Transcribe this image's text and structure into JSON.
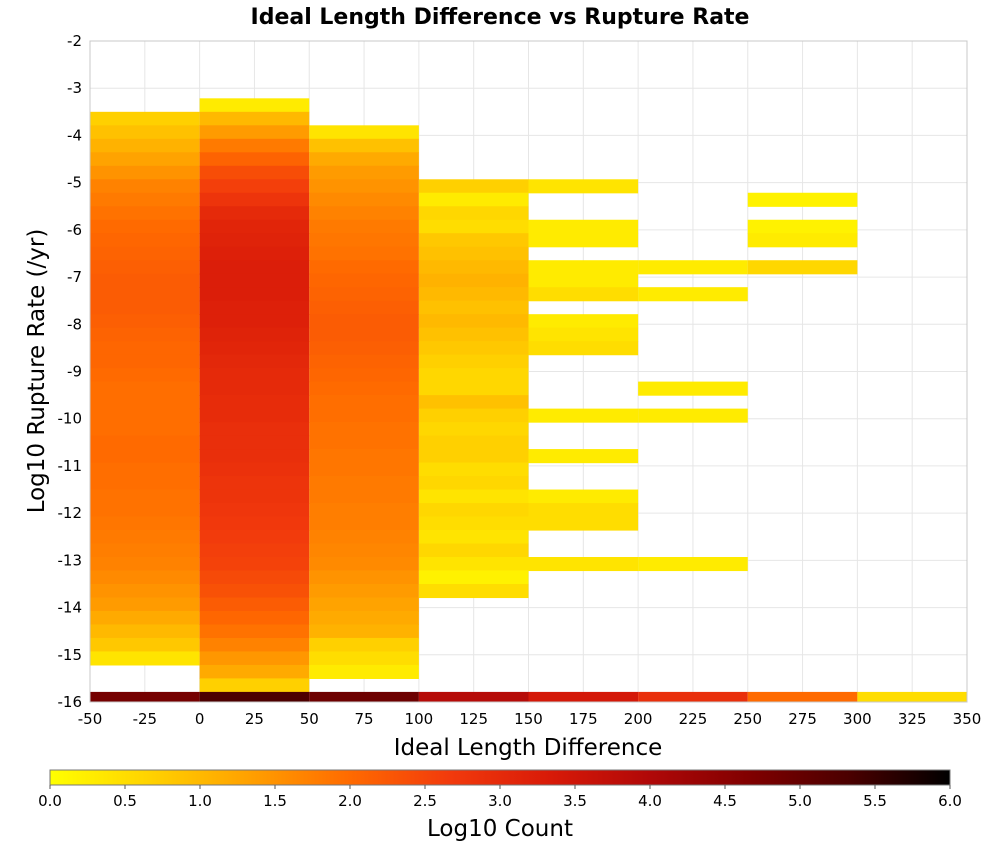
{
  "chart_data": {
    "type": "heatmap",
    "title": "Ideal Length Difference vs Rupture Rate",
    "xlabel": "Ideal Length Difference",
    "ylabel": "Log10 Rupture Rate (/yr)",
    "xlim": [
      -50,
      350
    ],
    "ylim": [
      -16,
      -2
    ],
    "x_ticks": [
      -50,
      -25,
      0,
      25,
      50,
      75,
      100,
      125,
      150,
      175,
      200,
      225,
      250,
      275,
      300,
      325,
      350
    ],
    "x_tick_labels": [
      "-50",
      "-25",
      "0",
      "25",
      "50",
      "75",
      "100",
      "125",
      "150",
      "175",
      "200",
      "225",
      "250",
      "275",
      "300",
      "325",
      "350"
    ],
    "y_ticks": [
      -2,
      -3,
      -4,
      -5,
      -6,
      -7,
      -8,
      -9,
      -10,
      -11,
      -12,
      -13,
      -14,
      -15,
      -16
    ],
    "y_tick_labels": [
      "-2",
      "-3",
      "-4",
      "-5",
      "-6",
      "-7",
      "-8",
      "-9",
      "-10",
      "-11",
      "-12",
      "-13",
      "-14",
      "-15",
      "-16"
    ],
    "grid": true,
    "x_bin_width": 50,
    "y_bin_height": 0.286,
    "colorbar": {
      "label": "Log10 Count",
      "range": [
        0.0,
        6.0
      ],
      "ticks": [
        "0.0",
        "0.5",
        "1.0",
        "1.5",
        "2.0",
        "2.5",
        "3.0",
        "3.5",
        "4.0",
        "4.5",
        "5.0",
        "5.5",
        "6.0"
      ],
      "colormap": [
        "#ffff00",
        "#ffd200",
        "#ffa000",
        "#ff6a00",
        "#f23a0c",
        "#d81a08",
        "#b00808",
        "#800000",
        "#4a0000",
        "#000000"
      ]
    },
    "columns": [
      {
        "x_start": -50,
        "cells": [
          [
            -3.5,
            -3.786,
            0.7
          ],
          [
            -3.786,
            -4.071,
            0.9
          ],
          [
            -4.071,
            -4.357,
            1.1
          ],
          [
            -4.357,
            -4.643,
            1.3
          ],
          [
            -4.643,
            -4.929,
            1.5
          ],
          [
            -4.929,
            -5.214,
            1.7
          ],
          [
            -5.214,
            -5.5,
            1.8
          ],
          [
            -5.5,
            -5.786,
            1.9
          ],
          [
            -5.786,
            -6.071,
            2.0
          ],
          [
            -6.071,
            -6.357,
            2.05
          ],
          [
            -6.357,
            -6.643,
            2.1
          ],
          [
            -6.643,
            -6.929,
            2.15
          ],
          [
            -6.929,
            -7.214,
            2.2
          ],
          [
            -7.214,
            -7.5,
            2.2
          ],
          [
            -7.5,
            -7.786,
            2.2
          ],
          [
            -7.786,
            -8.071,
            2.15
          ],
          [
            -8.071,
            -8.357,
            2.1
          ],
          [
            -8.357,
            -8.643,
            2.05
          ],
          [
            -8.643,
            -8.929,
            2.05
          ],
          [
            -8.929,
            -9.214,
            2.0
          ],
          [
            -9.214,
            -9.5,
            1.95
          ],
          [
            -9.5,
            -9.786,
            1.95
          ],
          [
            -9.786,
            -10.071,
            1.95
          ],
          [
            -10.071,
            -10.357,
            1.95
          ],
          [
            -10.357,
            -10.643,
            2.0
          ],
          [
            -10.643,
            -10.929,
            2.0
          ],
          [
            -10.929,
            -11.214,
            1.95
          ],
          [
            -11.214,
            -11.5,
            1.95
          ],
          [
            -11.5,
            -11.786,
            1.9
          ],
          [
            -11.786,
            -12.071,
            1.9
          ],
          [
            -12.071,
            -12.357,
            1.85
          ],
          [
            -12.357,
            -12.643,
            1.8
          ],
          [
            -12.643,
            -12.929,
            1.75
          ],
          [
            -12.929,
            -13.214,
            1.7
          ],
          [
            -13.214,
            -13.5,
            1.6
          ],
          [
            -13.5,
            -13.786,
            1.5
          ],
          [
            -13.786,
            -14.071,
            1.4
          ],
          [
            -14.071,
            -14.357,
            1.2
          ],
          [
            -14.357,
            -14.643,
            1.0
          ],
          [
            -14.643,
            -14.929,
            0.8
          ],
          [
            -14.929,
            -15.214,
            0.4
          ]
        ]
      },
      {
        "x_start": 0,
        "cells": [
          [
            -3.214,
            -3.5,
            0.3
          ],
          [
            -3.5,
            -3.786,
            1.0
          ],
          [
            -3.786,
            -4.071,
            1.4
          ],
          [
            -4.071,
            -4.357,
            1.8
          ],
          [
            -4.357,
            -4.643,
            2.1
          ],
          [
            -4.643,
            -4.929,
            2.4
          ],
          [
            -4.929,
            -5.214,
            2.6
          ],
          [
            -5.214,
            -5.5,
            2.8
          ],
          [
            -5.5,
            -5.786,
            3.0
          ],
          [
            -5.786,
            -6.071,
            3.1
          ],
          [
            -6.071,
            -6.357,
            3.15
          ],
          [
            -6.357,
            -6.643,
            3.2
          ],
          [
            -6.643,
            -6.929,
            3.25
          ],
          [
            -6.929,
            -7.214,
            3.25
          ],
          [
            -7.214,
            -7.5,
            3.25
          ],
          [
            -7.5,
            -7.786,
            3.2
          ],
          [
            -7.786,
            -8.071,
            3.2
          ],
          [
            -8.071,
            -8.357,
            3.15
          ],
          [
            -8.357,
            -8.643,
            3.1
          ],
          [
            -8.643,
            -8.929,
            3.05
          ],
          [
            -8.929,
            -9.214,
            3.0
          ],
          [
            -9.214,
            -9.5,
            3.0
          ],
          [
            -9.5,
            -9.786,
            2.95
          ],
          [
            -9.786,
            -10.071,
            2.95
          ],
          [
            -10.071,
            -10.357,
            2.9
          ],
          [
            -10.357,
            -10.643,
            2.9
          ],
          [
            -10.643,
            -10.929,
            2.9
          ],
          [
            -10.929,
            -11.214,
            2.85
          ],
          [
            -11.214,
            -11.5,
            2.8
          ],
          [
            -11.5,
            -11.786,
            2.8
          ],
          [
            -11.786,
            -12.071,
            2.75
          ],
          [
            -12.071,
            -12.357,
            2.7
          ],
          [
            -12.357,
            -12.643,
            2.65
          ],
          [
            -12.643,
            -12.929,
            2.6
          ],
          [
            -12.929,
            -13.214,
            2.55
          ],
          [
            -13.214,
            -13.5,
            2.45
          ],
          [
            -13.5,
            -13.786,
            2.35
          ],
          [
            -13.786,
            -14.071,
            2.2
          ],
          [
            -14.071,
            -14.357,
            2.05
          ],
          [
            -14.357,
            -14.643,
            1.9
          ],
          [
            -14.643,
            -14.929,
            1.7
          ],
          [
            -14.929,
            -15.214,
            1.45
          ],
          [
            -15.214,
            -15.5,
            1.2
          ],
          [
            -15.5,
            -15.786,
            0.7
          ]
        ]
      },
      {
        "x_start": 50,
        "cells": [
          [
            -3.786,
            -4.071,
            0.4
          ],
          [
            -4.071,
            -4.357,
            0.9
          ],
          [
            -4.357,
            -4.643,
            1.2
          ],
          [
            -4.643,
            -4.929,
            1.4
          ],
          [
            -4.929,
            -5.214,
            1.5
          ],
          [
            -5.214,
            -5.5,
            1.6
          ],
          [
            -5.5,
            -5.786,
            1.7
          ],
          [
            -5.786,
            -6.071,
            1.8
          ],
          [
            -6.071,
            -6.357,
            1.85
          ],
          [
            -6.357,
            -6.643,
            1.9
          ],
          [
            -6.643,
            -6.929,
            2.0
          ],
          [
            -6.929,
            -7.214,
            2.05
          ],
          [
            -7.214,
            -7.5,
            2.1
          ],
          [
            -7.5,
            -7.786,
            2.15
          ],
          [
            -7.786,
            -8.071,
            2.2
          ],
          [
            -8.071,
            -8.357,
            2.2
          ],
          [
            -8.357,
            -8.643,
            2.15
          ],
          [
            -8.643,
            -8.929,
            2.1
          ],
          [
            -8.929,
            -9.214,
            2.05
          ],
          [
            -9.214,
            -9.5,
            2.0
          ],
          [
            -9.5,
            -9.786,
            1.95
          ],
          [
            -9.786,
            -10.071,
            1.95
          ],
          [
            -10.071,
            -10.357,
            1.9
          ],
          [
            -10.357,
            -10.643,
            1.9
          ],
          [
            -10.643,
            -10.929,
            1.85
          ],
          [
            -10.929,
            -11.214,
            1.85
          ],
          [
            -11.214,
            -11.5,
            1.8
          ],
          [
            -11.5,
            -11.786,
            1.8
          ],
          [
            -11.786,
            -12.071,
            1.75
          ],
          [
            -12.071,
            -12.357,
            1.75
          ],
          [
            -12.357,
            -12.643,
            1.7
          ],
          [
            -12.643,
            -12.929,
            1.65
          ],
          [
            -12.929,
            -13.214,
            1.6
          ],
          [
            -13.214,
            -13.5,
            1.5
          ],
          [
            -13.5,
            -13.786,
            1.4
          ],
          [
            -13.786,
            -14.071,
            1.3
          ],
          [
            -14.071,
            -14.357,
            1.2
          ],
          [
            -14.357,
            -14.643,
            1.1
          ],
          [
            -14.643,
            -14.929,
            0.7
          ],
          [
            -14.929,
            -15.214,
            0.5
          ],
          [
            -15.214,
            -15.5,
            0.3
          ]
        ]
      },
      {
        "x_start": 100,
        "cells": [
          [
            -4.929,
            -5.214,
            0.7
          ],
          [
            -5.214,
            -5.5,
            0.3
          ],
          [
            -5.5,
            -5.786,
            0.6
          ],
          [
            -5.786,
            -6.071,
            0.5
          ],
          [
            -6.071,
            -6.357,
            0.8
          ],
          [
            -6.357,
            -6.643,
            0.9
          ],
          [
            -6.643,
            -6.929,
            1.0
          ],
          [
            -6.929,
            -7.214,
            1.1
          ],
          [
            -7.214,
            -7.5,
            1.0
          ],
          [
            -7.5,
            -7.786,
            0.9
          ],
          [
            -7.786,
            -8.071,
            1.0
          ],
          [
            -8.071,
            -8.357,
            0.9
          ],
          [
            -8.357,
            -8.643,
            0.8
          ],
          [
            -8.643,
            -8.929,
            0.7
          ],
          [
            -8.929,
            -9.214,
            0.6
          ],
          [
            -9.214,
            -9.5,
            0.6
          ],
          [
            -9.5,
            -9.786,
            0.9
          ],
          [
            -9.786,
            -10.071,
            0.7
          ],
          [
            -10.071,
            -10.357,
            0.6
          ],
          [
            -10.357,
            -10.643,
            0.7
          ],
          [
            -10.643,
            -10.929,
            0.7
          ],
          [
            -10.929,
            -11.214,
            0.5
          ],
          [
            -11.214,
            -11.5,
            0.6
          ],
          [
            -11.5,
            -11.786,
            0.4
          ],
          [
            -11.786,
            -12.071,
            0.6
          ],
          [
            -12.071,
            -12.357,
            0.5
          ],
          [
            -12.357,
            -12.643,
            0.4
          ],
          [
            -12.643,
            -12.929,
            0.6
          ],
          [
            -12.929,
            -13.214,
            0.4
          ],
          [
            -13.214,
            -13.5,
            0.2
          ],
          [
            -13.5,
            -13.786,
            0.5
          ]
        ]
      },
      {
        "x_start": 150,
        "cells": [
          [
            -4.929,
            -5.214,
            0.4
          ],
          [
            -5.786,
            -6.071,
            0.3
          ],
          [
            -6.071,
            -6.357,
            0.3
          ],
          [
            -6.643,
            -6.929,
            0.3
          ],
          [
            -6.929,
            -7.214,
            0.3
          ],
          [
            -7.214,
            -7.5,
            0.5
          ],
          [
            -7.786,
            -8.071,
            0.3
          ],
          [
            -8.071,
            -8.357,
            0.4
          ],
          [
            -8.357,
            -8.643,
            0.5
          ],
          [
            -9.786,
            -10.071,
            0.3
          ],
          [
            -10.643,
            -10.929,
            0.3
          ],
          [
            -11.5,
            -11.786,
            0.3
          ],
          [
            -11.786,
            -12.071,
            0.5
          ],
          [
            -12.071,
            -12.357,
            0.5
          ],
          [
            -12.929,
            -13.214,
            0.4
          ]
        ]
      },
      {
        "x_start": 200,
        "cells": [
          [
            -6.643,
            -6.929,
            0.3
          ],
          [
            -7.214,
            -7.5,
            0.3
          ],
          [
            -9.214,
            -9.5,
            0.3
          ],
          [
            -9.786,
            -10.071,
            0.3
          ],
          [
            -12.929,
            -13.214,
            0.3
          ]
        ]
      },
      {
        "x_start": 250,
        "cells": [
          [
            -5.214,
            -5.5,
            0.2
          ],
          [
            -5.786,
            -6.071,
            0.2
          ],
          [
            -6.071,
            -6.357,
            0.3
          ],
          [
            -6.643,
            -6.929,
            0.6
          ]
        ]
      }
    ],
    "bottom_row": {
      "y": [
        -15.786,
        -16.0
      ],
      "values": [
        {
          "x_start": -50,
          "value": 4.8
        },
        {
          "x_start": 0,
          "value": 5.3
        },
        {
          "x_start": 50,
          "value": 4.9
        },
        {
          "x_start": 100,
          "value": 3.9
        },
        {
          "x_start": 150,
          "value": 3.4
        },
        {
          "x_start": 200,
          "value": 2.9
        },
        {
          "x_start": 250,
          "value": 2.0
        },
        {
          "x_start": 300,
          "value": 0.5
        }
      ]
    }
  }
}
